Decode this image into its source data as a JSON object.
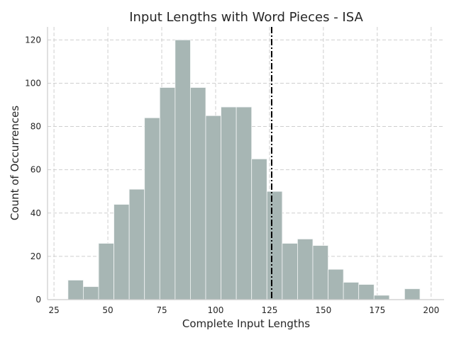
{
  "chart_data": {
    "type": "bar",
    "title": "Input Lengths with Word Pieces - ISA",
    "xlabel": "Complete Input Lengths",
    "ylabel": "Count of Occurrences",
    "xlim": [
      22,
      206
    ],
    "ylim": [
      0,
      126
    ],
    "xticks": [
      25,
      50,
      75,
      100,
      125,
      150,
      175,
      200
    ],
    "yticks": [
      0,
      20,
      40,
      60,
      80,
      100,
      120
    ],
    "grid": true,
    "bar_color": "#a7b6b4",
    "edge_color": "#f2f5f5",
    "bins": [
      {
        "x0": 31.5,
        "x1": 38.6,
        "count": 9
      },
      {
        "x0": 38.6,
        "x1": 45.7,
        "count": 6
      },
      {
        "x0": 45.7,
        "x1": 52.8,
        "count": 26
      },
      {
        "x0": 52.8,
        "x1": 59.9,
        "count": 44
      },
      {
        "x0": 59.9,
        "x1": 67.0,
        "count": 51
      },
      {
        "x0": 67.0,
        "x1": 74.1,
        "count": 84
      },
      {
        "x0": 74.1,
        "x1": 81.2,
        "count": 98
      },
      {
        "x0": 81.2,
        "x1": 88.3,
        "count": 120
      },
      {
        "x0": 88.3,
        "x1": 95.4,
        "count": 98
      },
      {
        "x0": 95.4,
        "x1": 102.5,
        "count": 85
      },
      {
        "x0": 102.5,
        "x1": 109.6,
        "count": 89
      },
      {
        "x0": 109.6,
        "x1": 116.7,
        "count": 89
      },
      {
        "x0": 116.7,
        "x1": 123.8,
        "count": 65
      },
      {
        "x0": 123.8,
        "x1": 130.9,
        "count": 50
      },
      {
        "x0": 130.9,
        "x1": 138.0,
        "count": 26
      },
      {
        "x0": 138.0,
        "x1": 145.1,
        "count": 28
      },
      {
        "x0": 145.1,
        "x1": 152.2,
        "count": 25
      },
      {
        "x0": 152.2,
        "x1": 159.3,
        "count": 14
      },
      {
        "x0": 159.3,
        "x1": 166.4,
        "count": 8
      },
      {
        "x0": 166.4,
        "x1": 173.5,
        "count": 7
      },
      {
        "x0": 173.5,
        "x1": 180.6,
        "count": 2
      },
      {
        "x0": 187.7,
        "x1": 194.8,
        "count": 5
      }
    ],
    "reference_line": {
      "x": 126,
      "style": "dash-dot",
      "color": "#000000"
    }
  }
}
